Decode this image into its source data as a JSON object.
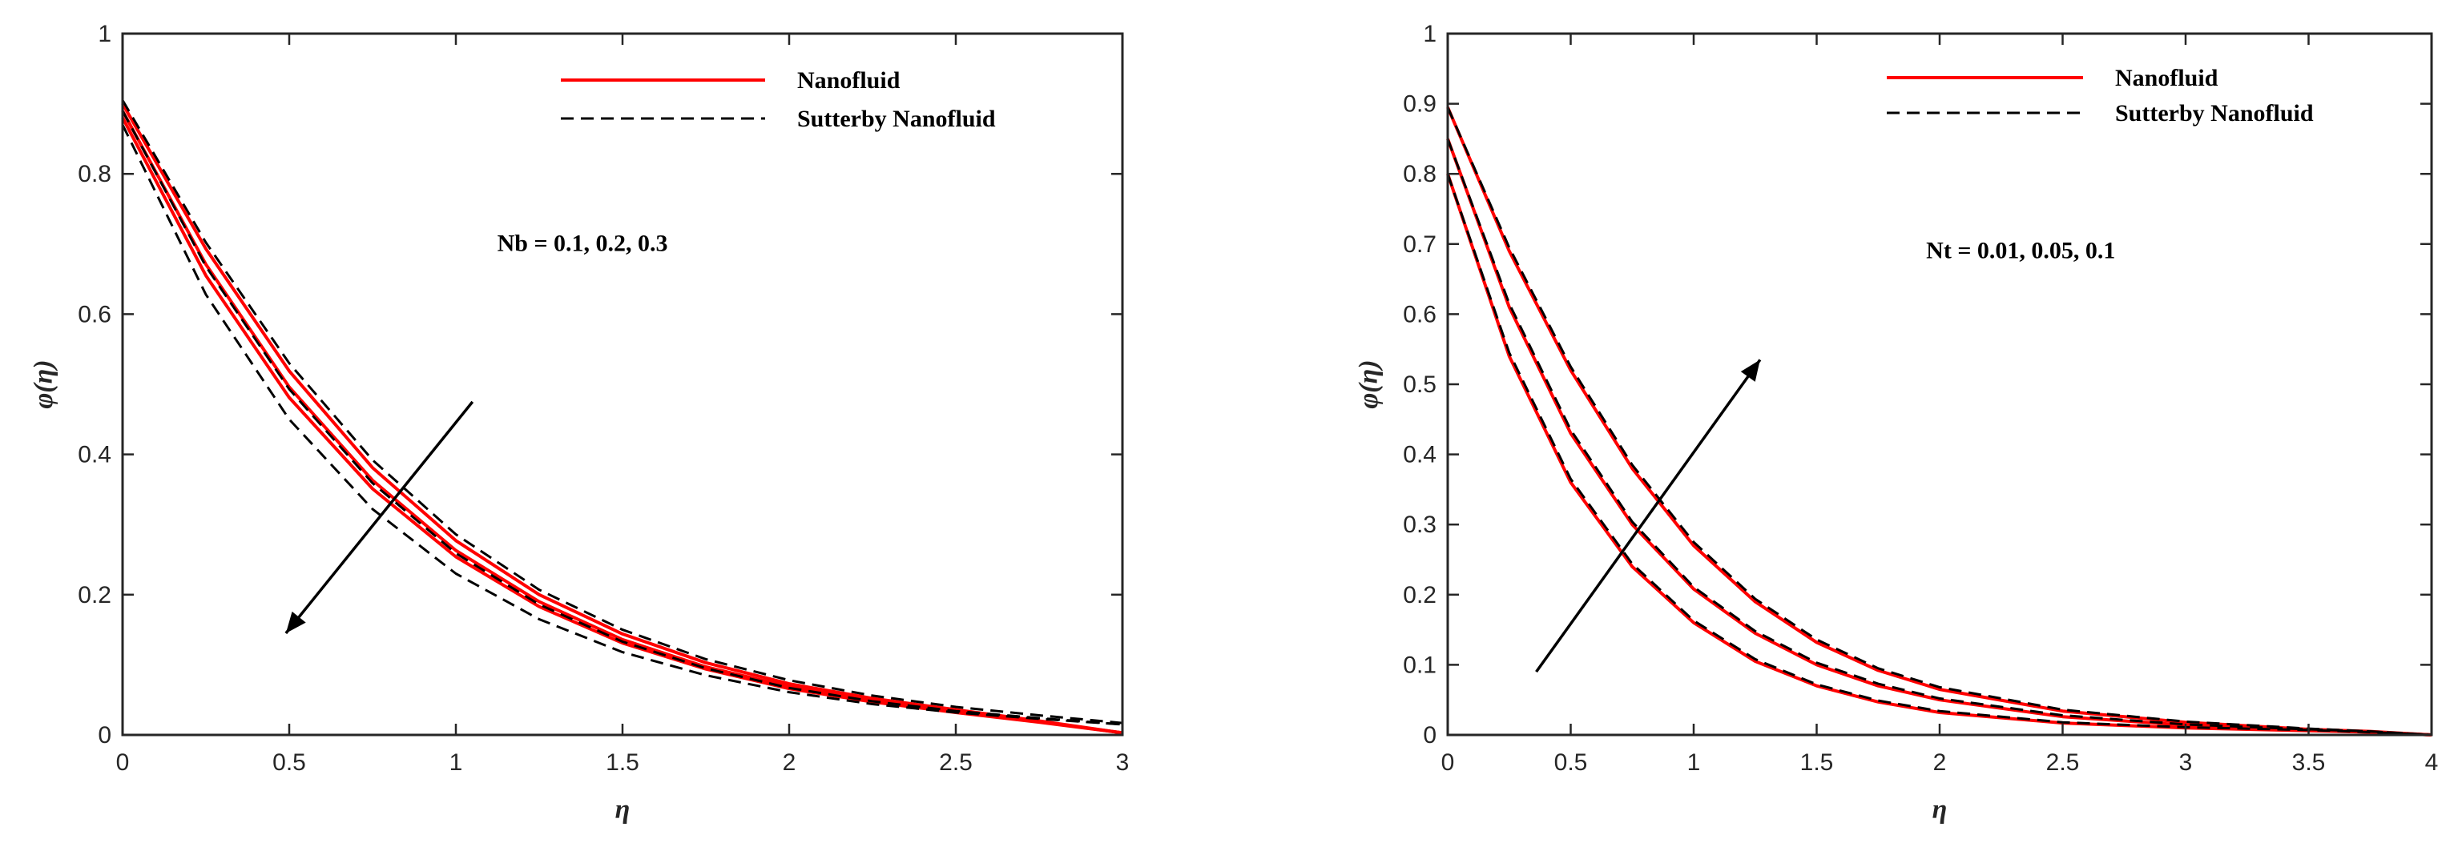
{
  "colors": {
    "nanofluid": "#ff0000",
    "sutterby": "#000000",
    "axes": "#262626"
  },
  "chart_data": [
    {
      "type": "line",
      "title": "",
      "xlabel": "η",
      "ylabel": "φ(η)",
      "xlim": [
        0,
        3
      ],
      "ylim": [
        0,
        1
      ],
      "xticks": [
        0,
        0.5,
        1,
        1.5,
        2,
        2.5,
        3
      ],
      "xtick_labels": [
        "0",
        "0.5",
        "1",
        "1.5",
        "2",
        "2.5",
        "3"
      ],
      "yticks": [
        0,
        0.2,
        0.4,
        0.6,
        0.8,
        1
      ],
      "ytick_labels": [
        "0",
        "0.2",
        "0.4",
        "0.6",
        "0.8",
        "1"
      ],
      "legend": {
        "position": "top-right",
        "entries": [
          {
            "label": "Nanofluid",
            "style": "solid",
            "color": "#ff0000"
          },
          {
            "label": "Sutterby Nanofluid",
            "style": "dashed",
            "color": "#000000"
          }
        ]
      },
      "annotation": {
        "text": "Nb = 0.1, 0.2, 0.3",
        "x": 1.38,
        "y": 0.69
      },
      "arrow": {
        "from": [
          1.05,
          0.475
        ],
        "to": [
          0.49,
          0.145
        ],
        "meaning": "increasing Nb"
      },
      "x": [
        0,
        0.25,
        0.5,
        0.75,
        1,
        1.25,
        1.5,
        1.75,
        2,
        2.25,
        2.5,
        2.75,
        3
      ],
      "series": [
        {
          "name": "Nanofluid, Nb = 0.1",
          "style": "solid",
          "color": "#ff0000",
          "values": [
            0.9,
            0.693,
            0.519,
            0.381,
            0.277,
            0.2,
            0.144,
            0.103,
            0.073,
            0.052,
            0.036,
            0.02,
            0.003
          ]
        },
        {
          "name": "Nanofluid, Nb = 0.2",
          "style": "solid",
          "color": "#ff0000",
          "values": [
            0.89,
            0.671,
            0.496,
            0.363,
            0.263,
            0.19,
            0.136,
            0.097,
            0.069,
            0.049,
            0.034,
            0.019,
            0.003
          ]
        },
        {
          "name": "Nanofluid, Nb = 0.3",
          "style": "solid",
          "color": "#ff0000",
          "values": [
            0.88,
            0.655,
            0.481,
            0.351,
            0.254,
            0.183,
            0.131,
            0.094,
            0.066,
            0.047,
            0.032,
            0.018,
            0.003
          ]
        },
        {
          "name": "Sutterby Nanofluid, Nb = 0.1",
          "style": "dashed",
          "color": "#000000",
          "values": [
            0.905,
            0.702,
            0.53,
            0.392,
            0.286,
            0.207,
            0.15,
            0.108,
            0.078,
            0.056,
            0.04,
            0.028,
            0.017
          ]
        },
        {
          "name": "Sutterby Nanofluid, Nb = 0.2",
          "style": "dashed",
          "color": "#000000",
          "values": [
            0.89,
            0.668,
            0.493,
            0.359,
            0.259,
            0.186,
            0.133,
            0.095,
            0.067,
            0.048,
            0.034,
            0.024,
            0.015
          ]
        },
        {
          "name": "Sutterby Nanofluid, Nb = 0.3",
          "style": "dashed",
          "color": "#000000",
          "values": [
            0.87,
            0.628,
            0.45,
            0.322,
            0.23,
            0.165,
            0.118,
            0.085,
            0.061,
            0.044,
            0.032,
            0.023,
            0.015
          ]
        }
      ]
    },
    {
      "type": "line",
      "title": "",
      "xlabel": "η",
      "ylabel": "φ(η)",
      "xlim": [
        0,
        4
      ],
      "ylim": [
        0,
        1
      ],
      "xticks": [
        0,
        0.5,
        1,
        1.5,
        2,
        2.5,
        3,
        3.5,
        4
      ],
      "xtick_labels": [
        "0",
        "0.5",
        "1",
        "1.5",
        "2",
        "2.5",
        "3",
        "3.5",
        "4"
      ],
      "yticks": [
        0,
        0.1,
        0.2,
        0.3,
        0.4,
        0.5,
        0.6,
        0.7,
        0.8,
        0.9,
        1
      ],
      "ytick_labels": [
        "0",
        "0.1",
        "0.2",
        "0.3",
        "0.4",
        "0.5",
        "0.6",
        "0.7",
        "0.8",
        "0.9",
        "1"
      ],
      "legend": {
        "position": "top-right",
        "entries": [
          {
            "label": "Nanofluid",
            "style": "solid",
            "color": "#ff0000"
          },
          {
            "label": "Sutterby Nanofluid",
            "style": "dashed",
            "color": "#000000"
          }
        ]
      },
      "annotation": {
        "text": "Nt = 0.01, 0.05, 0.1",
        "x": 2.33,
        "y": 0.68
      },
      "arrow": {
        "from": [
          0.36,
          0.09
        ],
        "to": [
          1.27,
          0.535
        ],
        "meaning": "increasing Nt"
      },
      "x": [
        0,
        0.25,
        0.5,
        0.75,
        1,
        1.25,
        1.5,
        1.75,
        2,
        2.5,
        3,
        3.5,
        3.75,
        4
      ],
      "series": [
        {
          "name": "Nanofluid, Nt = 0.01",
          "style": "solid",
          "color": "#ff0000",
          "values": [
            0.8,
            0.54,
            0.36,
            0.24,
            0.16,
            0.105,
            0.07,
            0.047,
            0.032,
            0.017,
            0.01,
            0.006,
            0.004,
            0.0
          ]
        },
        {
          "name": "Nanofluid, Nt = 0.05",
          "style": "solid",
          "color": "#ff0000",
          "values": [
            0.85,
            0.61,
            0.43,
            0.3,
            0.208,
            0.145,
            0.1,
            0.07,
            0.05,
            0.026,
            0.014,
            0.007,
            0.004,
            0.0
          ]
        },
        {
          "name": "Nanofluid, Nt = 0.1",
          "style": "solid",
          "color": "#ff0000",
          "values": [
            0.895,
            0.69,
            0.52,
            0.38,
            0.27,
            0.19,
            0.132,
            0.092,
            0.065,
            0.034,
            0.018,
            0.008,
            0.005,
            0.0
          ]
        },
        {
          "name": "Sutterby Nanofluid, Nt = 0.01",
          "style": "dashed",
          "color": "#000000",
          "values": [
            0.8,
            0.545,
            0.365,
            0.244,
            0.163,
            0.108,
            0.072,
            0.049,
            0.034,
            0.018,
            0.011,
            0.007,
            0.004,
            0.0
          ]
        },
        {
          "name": "Sutterby Nanofluid, Nt = 0.05",
          "style": "dashed",
          "color": "#000000",
          "values": [
            0.85,
            0.615,
            0.435,
            0.304,
            0.211,
            0.148,
            0.103,
            0.073,
            0.052,
            0.028,
            0.015,
            0.008,
            0.005,
            0.0
          ]
        },
        {
          "name": "Sutterby Nanofluid, Nt = 0.1",
          "style": "dashed",
          "color": "#000000",
          "values": [
            0.895,
            0.695,
            0.525,
            0.385,
            0.275,
            0.194,
            0.136,
            0.095,
            0.068,
            0.036,
            0.019,
            0.009,
            0.005,
            0.0
          ]
        }
      ]
    }
  ]
}
